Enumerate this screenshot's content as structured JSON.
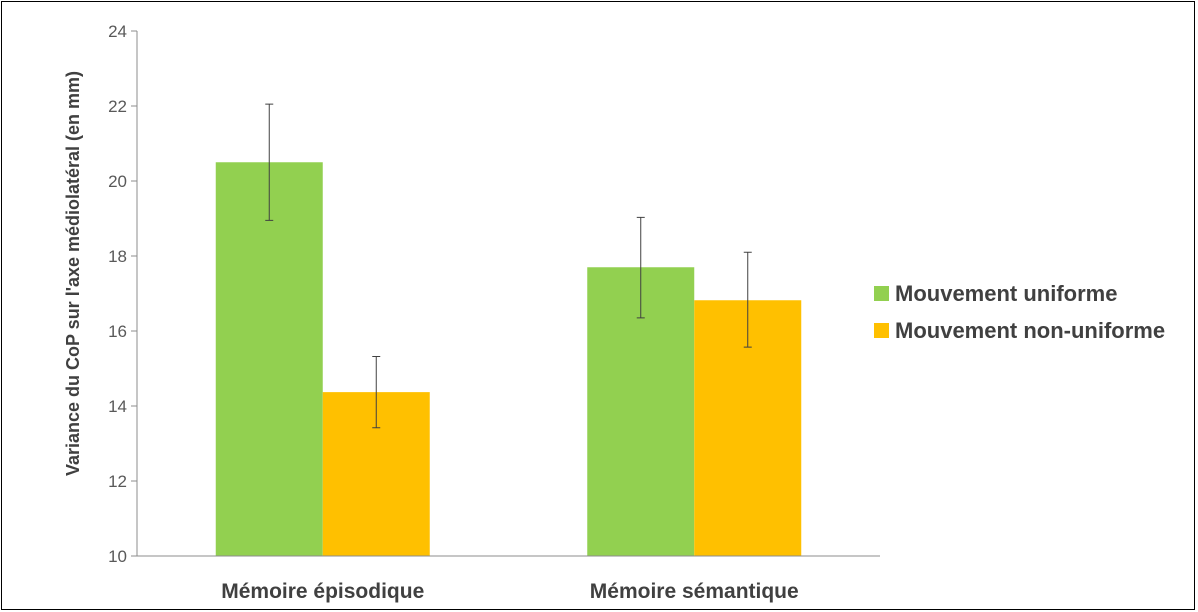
{
  "chart_data": {
    "type": "bar",
    "title": "",
    "xlabel": "",
    "ylabel": "Variance du CoP sur l'axe médiolatéral (en mm)",
    "ylim": [
      10,
      24
    ],
    "yticks": [
      10,
      12,
      14,
      16,
      18,
      20,
      22,
      24
    ],
    "grid": false,
    "legend_position": "right",
    "categories": [
      "Mémoire épisodique",
      "Mémoire sémantique"
    ],
    "series": [
      {
        "name": "Mouvement uniforme",
        "color": "#92D050",
        "values": [
          20.5,
          17.7
        ],
        "error_low": [
          18.95,
          16.35
        ],
        "error_high": [
          22.05,
          19.03
        ]
      },
      {
        "name": "Mouvement non-uniforme",
        "color": "#FFC000",
        "values": [
          14.37,
          16.82
        ],
        "error_low": [
          13.42,
          15.57
        ],
        "error_high": [
          15.32,
          18.1
        ]
      }
    ]
  }
}
